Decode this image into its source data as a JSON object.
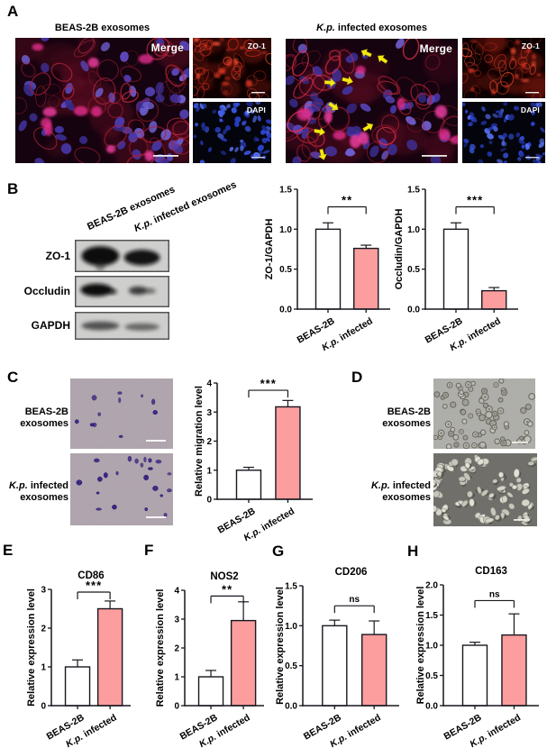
{
  "colors": {
    "axis": "#17171f",
    "bar_white": "#ffffff",
    "bar_pink": "#FC9E9E",
    "arrow_yellow": "#F4E90F"
  },
  "panelA": {
    "label": "A",
    "left_title": "BEAS-2B exosomes",
    "right_title_italic": "K.p.",
    "right_title_rest": " infected exosomes",
    "merge_label": "Merge",
    "zo1_label": "ZO-1",
    "dapi_label": "DAPI"
  },
  "panelB": {
    "label": "B",
    "col1_label": "BEAS-2B exosomes",
    "col2_italic": "K.p.",
    "col2_rest": " infected exosomes",
    "row_labels": [
      "ZO-1",
      "Occludin",
      "GAPDH"
    ]
  },
  "panelC": {
    "label": "C",
    "row1_line1": "BEAS-2B",
    "row1_line2": "exosomes",
    "row2_italic": "K.p.",
    "row2_line1_rest": " infected",
    "row2_line2": "exosomes"
  },
  "panelD": {
    "label": "D",
    "row1_line1": "BEAS-2B",
    "row1_line2": "exosomes",
    "row2_italic": "K.p.",
    "row2_line1_rest": " infected",
    "row2_line2": "exosomes"
  },
  "panelE": {
    "label": "E"
  },
  "panelF": {
    "label": "F"
  },
  "panelG": {
    "label": "G"
  },
  "panelH": {
    "label": "H"
  },
  "chart_data": [
    {
      "type": "bar",
      "title": "",
      "ylabel": "ZO-1/GAPDH",
      "ymax": 1.5,
      "ylim": [
        0,
        1.5
      ],
      "ytick_labels": [
        "0.0",
        "0.5",
        "1.0",
        "1.5"
      ],
      "categories": [
        "BEAS-2B",
        "K.p. infected"
      ],
      "values": [
        1.0,
        0.76
      ],
      "errors": [
        0.08,
        0.04
      ],
      "bar_colors": [
        "#ffffff",
        "#FC9E9E"
      ],
      "sig": "**",
      "sig_y": 1.28
    },
    {
      "type": "bar",
      "title": "",
      "ylabel": "Occludin/GAPDH",
      "ymax": 1.5,
      "ylim": [
        0,
        1.5
      ],
      "ytick_labels": [
        "0.0",
        "0.5",
        "1.0",
        "1.5"
      ],
      "categories": [
        "BEAS-2B",
        "K.p. infected"
      ],
      "values": [
        1.0,
        0.23
      ],
      "errors": [
        0.08,
        0.04
      ],
      "bar_colors": [
        "#ffffff",
        "#FC9E9E"
      ],
      "sig": "***",
      "sig_y": 1.28
    },
    {
      "type": "bar",
      "title": "",
      "ylabel": "Relative migration level",
      "ymax": 4,
      "ylim": [
        0,
        4
      ],
      "ytick_labels": [
        "0",
        "1",
        "2",
        "3",
        "4"
      ],
      "categories": [
        "BEAS-2B",
        "K.p. infected"
      ],
      "values": [
        1.0,
        3.18
      ],
      "errors": [
        0.1,
        0.22
      ],
      "bar_colors": [
        "#ffffff",
        "#FC9E9E"
      ],
      "sig": "***",
      "sig_y": 3.75
    },
    {
      "type": "bar",
      "title": "CD86",
      "ylabel": "Relative expression level",
      "ymax": 3,
      "ylim": [
        0,
        3
      ],
      "ytick_labels": [
        "0",
        "1",
        "2",
        "3"
      ],
      "categories": [
        "BEAS-2B",
        "K.p. infected"
      ],
      "values": [
        1.0,
        2.5
      ],
      "errors": [
        0.18,
        0.2
      ],
      "bar_colors": [
        "#ffffff",
        "#FC9E9E"
      ],
      "sig": "***",
      "sig_y": 2.93
    },
    {
      "type": "bar",
      "title": "NOS2",
      "ylabel": "Relative expression level",
      "ymax": 4,
      "ylim": [
        0,
        4
      ],
      "ytick_labels": [
        "0",
        "1",
        "2",
        "3",
        "4"
      ],
      "categories": [
        "BEAS-2B",
        "K.p. infected"
      ],
      "values": [
        1.0,
        2.95
      ],
      "errors": [
        0.22,
        0.65
      ],
      "bar_colors": [
        "#ffffff",
        "#FC9E9E"
      ],
      "sig": "**",
      "sig_y": 3.8
    },
    {
      "type": "bar",
      "title": "CD206",
      "ylabel": "Relative expression level",
      "ymax": 1.5,
      "ylim": [
        0,
        1.5
      ],
      "ytick_labels": [
        "0.0",
        "0.5",
        "1.0",
        "1.5"
      ],
      "categories": [
        "BEAS-2B",
        "K.p. infected"
      ],
      "values": [
        1.0,
        0.89
      ],
      "errors": [
        0.07,
        0.17
      ],
      "bar_colors": [
        "#ffffff",
        "#FC9E9E"
      ],
      "sig": "ns",
      "sig_y": 1.25
    },
    {
      "type": "bar",
      "title": "CD163",
      "ylabel": "Relative expression level",
      "ymax": 2,
      "ylim": [
        0,
        2
      ],
      "ytick_labels": [
        "0.0",
        "0.5",
        "1.0",
        "1.5",
        "2.0"
      ],
      "categories": [
        "BEAS-2B",
        "K.p. infected"
      ],
      "values": [
        1.0,
        1.17
      ],
      "errors": [
        0.05,
        0.35
      ],
      "bar_colors": [
        "#ffffff",
        "#FC9E9E"
      ],
      "sig": "ns",
      "sig_y": 1.74
    }
  ]
}
